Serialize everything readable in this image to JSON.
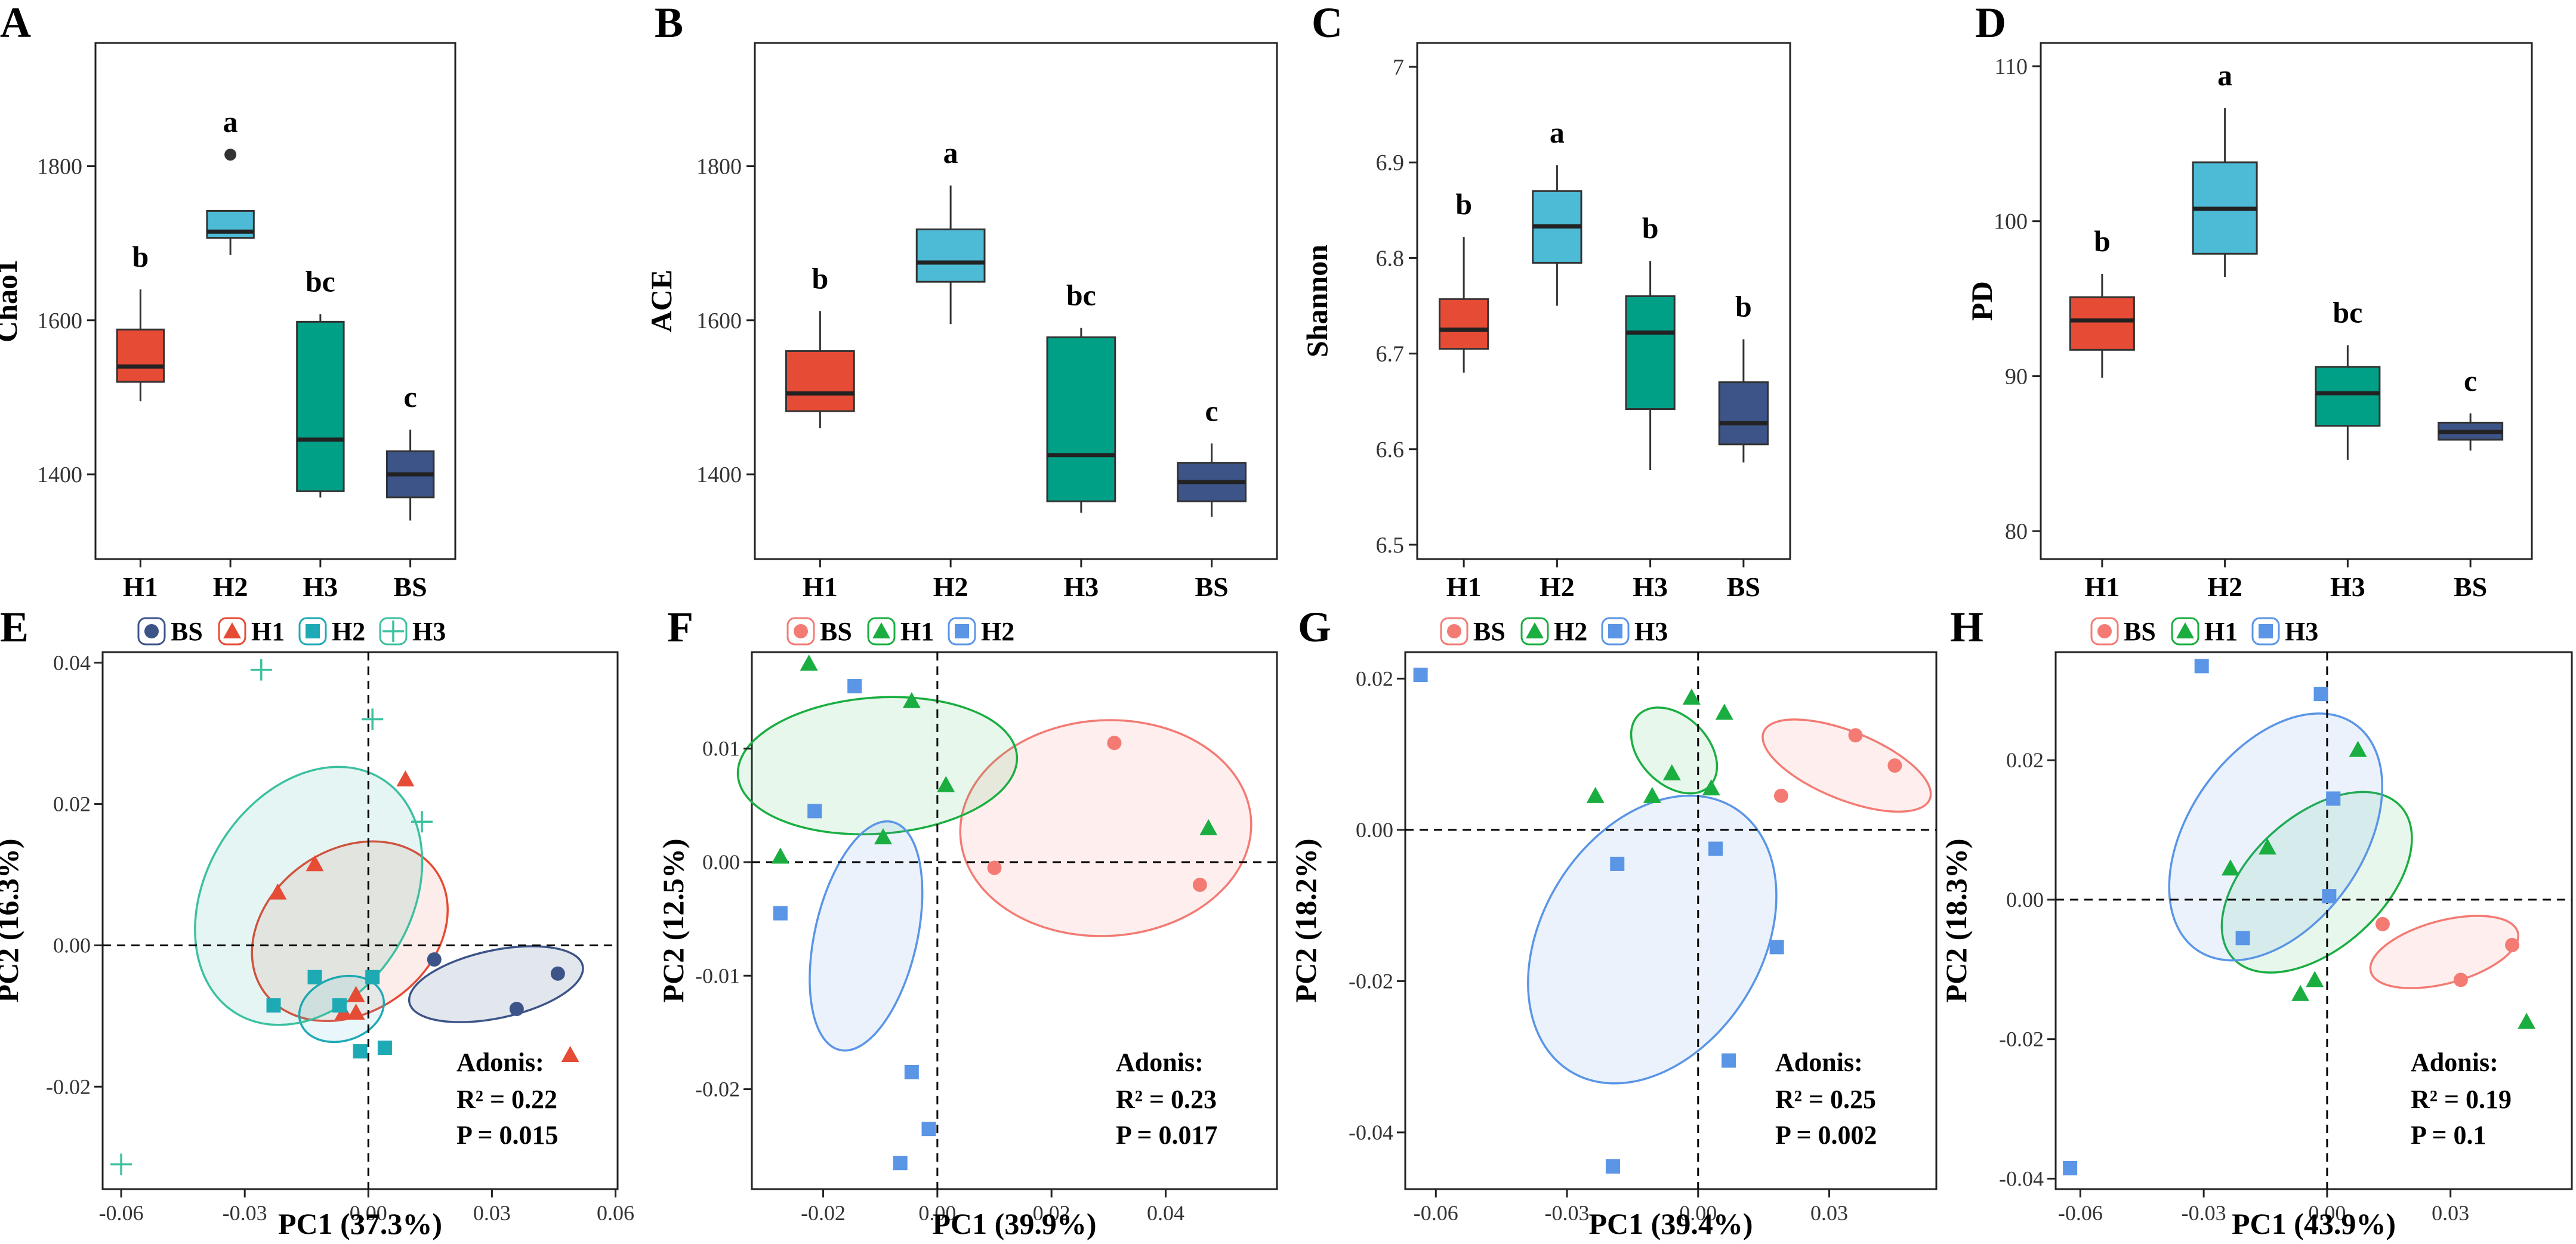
{
  "chart_data": [
    {
      "panel": "A",
      "type": "boxplot",
      "ylabel": "Chao1",
      "ylim": [
        1290,
        1960
      ],
      "yticks": [
        1400,
        1600,
        1800
      ],
      "categories": [
        "H1",
        "H2",
        "H3",
        "BS"
      ],
      "boxes": [
        {
          "group": "H1",
          "min": 1495,
          "q1": 1520,
          "median": 1540,
          "q3": 1588,
          "max": 1640,
          "color": "#E64B35",
          "letter": "b",
          "outliers": []
        },
        {
          "group": "H2",
          "min": 1685,
          "q1": 1707,
          "median": 1715,
          "q3": 1742,
          "max": 1742,
          "color": "#4DBBD5",
          "letter": "a",
          "outliers": [
            1815
          ]
        },
        {
          "group": "H3",
          "min": 1370,
          "q1": 1378,
          "median": 1445,
          "q3": 1598,
          "max": 1608,
          "color": "#00A087",
          "letter": "bc",
          "outliers": []
        },
        {
          "group": "BS",
          "min": 1340,
          "q1": 1370,
          "median": 1400,
          "q3": 1430,
          "max": 1458,
          "color": "#3C5488",
          "letter": "c",
          "outliers": []
        }
      ]
    },
    {
      "panel": "B",
      "type": "boxplot",
      "ylabel": "ACE",
      "ylim": [
        1290,
        1960
      ],
      "yticks": [
        1400,
        1600,
        1800
      ],
      "categories": [
        "H1",
        "H2",
        "H3",
        "BS"
      ],
      "boxes": [
        {
          "group": "H1",
          "min": 1460,
          "q1": 1482,
          "median": 1505,
          "q3": 1560,
          "max": 1612,
          "color": "#E64B35",
          "letter": "b",
          "outliers": []
        },
        {
          "group": "H2",
          "min": 1595,
          "q1": 1650,
          "median": 1675,
          "q3": 1718,
          "max": 1775,
          "color": "#4DBBD5",
          "letter": "a",
          "outliers": []
        },
        {
          "group": "H3",
          "min": 1350,
          "q1": 1365,
          "median": 1425,
          "q3": 1578,
          "max": 1590,
          "color": "#00A087",
          "letter": "bc",
          "outliers": []
        },
        {
          "group": "BS",
          "min": 1345,
          "q1": 1365,
          "median": 1390,
          "q3": 1415,
          "max": 1440,
          "color": "#3C5488",
          "letter": "c",
          "outliers": []
        }
      ]
    },
    {
      "panel": "C",
      "type": "boxplot",
      "ylabel": "Shannon",
      "ylim": [
        6.485,
        7.025
      ],
      "yticks": [
        6.5,
        6.6,
        6.7,
        6.8,
        6.9,
        7.0
      ],
      "categories": [
        "H1",
        "H2",
        "H3",
        "BS"
      ],
      "boxes": [
        {
          "group": "H1",
          "min": 6.68,
          "q1": 6.705,
          "median": 6.725,
          "q3": 6.757,
          "max": 6.822,
          "color": "#E64B35",
          "letter": "b",
          "outliers": []
        },
        {
          "group": "H2",
          "min": 6.75,
          "q1": 6.795,
          "median": 6.833,
          "q3": 6.87,
          "max": 6.897,
          "color": "#4DBBD5",
          "letter": "a",
          "outliers": []
        },
        {
          "group": "H3",
          "min": 6.578,
          "q1": 6.642,
          "median": 6.722,
          "q3": 6.76,
          "max": 6.797,
          "color": "#00A087",
          "letter": "b",
          "outliers": []
        },
        {
          "group": "BS",
          "min": 6.586,
          "q1": 6.605,
          "median": 6.627,
          "q3": 6.67,
          "max": 6.715,
          "color": "#3C5488",
          "letter": "b",
          "outliers": []
        }
      ]
    },
    {
      "panel": "D",
      "type": "boxplot",
      "ylabel": "PD",
      "ylim": [
        78.2,
        111.5
      ],
      "yticks": [
        80,
        90,
        100,
        110
      ],
      "categories": [
        "H1",
        "H2",
        "H3",
        "BS"
      ],
      "boxes": [
        {
          "group": "H1",
          "min": 89.9,
          "q1": 91.7,
          "median": 93.6,
          "q3": 95.1,
          "max": 96.6,
          "color": "#E64B35",
          "letter": "b",
          "outliers": []
        },
        {
          "group": "H2",
          "min": 96.4,
          "q1": 97.9,
          "median": 100.8,
          "q3": 103.8,
          "max": 107.3,
          "color": "#4DBBD5",
          "letter": "a",
          "outliers": []
        },
        {
          "group": "H3",
          "min": 84.6,
          "q1": 86.8,
          "median": 88.9,
          "q3": 90.6,
          "max": 92.0,
          "color": "#00A087",
          "letter": "bc",
          "outliers": []
        },
        {
          "group": "BS",
          "min": 85.2,
          "q1": 85.9,
          "median": 86.4,
          "q3": 87.0,
          "max": 87.6,
          "color": "#3C5488",
          "letter": "c",
          "outliers": []
        }
      ]
    },
    {
      "panel": "E",
      "type": "scatter",
      "xlabel": "PC1 (37.3%)",
      "ylabel": "PC2 (16.3%)",
      "xlim": [
        -0.0645,
        0.0605
      ],
      "ylim": [
        -0.0345,
        0.0415
      ],
      "xticks": [
        -0.06,
        -0.03,
        0.0,
        0.03,
        0.06
      ],
      "xtick_labels": [
        "-0.06",
        "-0.03",
        "0.00",
        "0.03",
        "0.06"
      ],
      "yticks": [
        -0.02,
        0.0,
        0.02,
        0.04
      ],
      "ytick_labels": [
        "-0.02",
        "0.00",
        "0.02",
        "0.04"
      ],
      "adonis": {
        "title": "Adonis:",
        "r2": "R² = 0.22",
        "p": "P  = 0.015"
      },
      "series": [
        {
          "name": "BS",
          "shape": "circle",
          "color": "#3C5488",
          "fill": "rgba(60,84,136,0.15)",
          "points": [
            [
              0.016,
              -0.002
            ],
            [
              0.036,
              -0.009
            ],
            [
              0.046,
              -0.004
            ]
          ],
          "ellipse": {
            "cx": 0.031,
            "cy": -0.0055,
            "rx": 0.0215,
            "ry": 0.0048,
            "angle": -12
          }
        },
        {
          "name": "H1",
          "shape": "triangle",
          "color": "#E64B35",
          "fill": "rgba(230,75,53,0.10)",
          "points": [
            [
              0.009,
              0.0235
            ],
            [
              -0.013,
              0.0115
            ],
            [
              -0.022,
              0.0075
            ],
            [
              -0.003,
              -0.007
            ],
            [
              -0.006,
              -0.0095
            ],
            [
              -0.003,
              -0.0095
            ],
            [
              0.049,
              -0.0155
            ]
          ],
          "ellipse": {
            "cx": -0.0045,
            "cy": 0.002,
            "rx": 0.0255,
            "ry": 0.0115,
            "angle": -35
          }
        },
        {
          "name": "H2",
          "shape": "square",
          "color": "#1EAAB5",
          "fill": "rgba(77,187,213,0.12)",
          "points": [
            [
              -0.023,
              -0.0085
            ],
            [
              -0.013,
              -0.0045
            ],
            [
              -0.007,
              -0.0085
            ],
            [
              0.001,
              -0.0045
            ],
            [
              -0.002,
              -0.015
            ],
            [
              0.004,
              -0.0145
            ]
          ],
          "ellipse": {
            "cx": -0.0065,
            "cy": -0.009,
            "rx": 0.0105,
            "ry": 0.0045,
            "angle": -18
          }
        },
        {
          "name": "H3",
          "shape": "plus",
          "color": "#3CC0A0",
          "fill": "rgba(0,160,135,0.10)",
          "points": [
            [
              -0.026,
              0.039
            ],
            [
              0.001,
              0.032
            ],
            [
              0.013,
              0.0175
            ],
            [
              -0.06,
              -0.031
            ]
          ],
          "ellipse": {
            "cx": -0.0145,
            "cy": 0.007,
            "rx": 0.0335,
            "ry": 0.0145,
            "angle": -58
          }
        }
      ]
    },
    {
      "panel": "F",
      "type": "scatter",
      "xlabel": "PC1 (39.9%)",
      "ylabel": "PC2 (12.5%)",
      "xlim": [
        -0.0325,
        0.0595
      ],
      "ylim": [
        -0.0288,
        0.0185
      ],
      "xticks": [
        -0.02,
        0.0,
        0.02,
        0.04
      ],
      "xtick_labels": [
        "-0.02",
        "0.00",
        "0.02",
        "0.04"
      ],
      "yticks": [
        -0.02,
        -0.01,
        0.0,
        0.01
      ],
      "ytick_labels": [
        "-0.02",
        "-0.01",
        "0.00",
        "0.01"
      ],
      "adonis": {
        "title": "Adonis:",
        "r2": "R² = 0.23",
        "p": "P  = 0.017"
      },
      "series": [
        {
          "name": "BS",
          "shape": "circle",
          "color": "#F37B74",
          "fill": "rgba(243,123,116,0.12)",
          "points": [
            [
              0.031,
              0.0105
            ],
            [
              0.01,
              -0.0005
            ],
            [
              0.046,
              -0.002
            ]
          ],
          "ellipse": {
            "cx": 0.0295,
            "cy": 0.003,
            "rx": 0.0255,
            "ry": 0.0095,
            "angle": -3
          }
        },
        {
          "name": "H1",
          "shape": "triangle",
          "color": "#1AAE41",
          "fill": "rgba(26,174,65,0.10)",
          "points": [
            [
              -0.0225,
              0.0175
            ],
            [
              -0.0045,
              0.0142
            ],
            [
              0.0015,
              0.0068
            ],
            [
              -0.0095,
              0.0022
            ],
            [
              -0.0275,
              0.0005
            ],
            [
              0.0475,
              0.003
            ]
          ],
          "ellipse": {
            "cx": -0.0105,
            "cy": 0.0085,
            "rx": 0.0245,
            "ry": 0.006,
            "angle": -4
          }
        },
        {
          "name": "H2",
          "shape": "square",
          "color": "#5A95E6",
          "fill": "rgba(90,149,230,0.12)",
          "points": [
            [
              -0.0145,
              0.0155
            ],
            [
              -0.0215,
              0.0045
            ],
            [
              -0.0275,
              -0.0045
            ],
            [
              -0.0045,
              -0.0185
            ],
            [
              -0.0015,
              -0.0235
            ],
            [
              -0.0065,
              -0.0265
            ]
          ],
          "ellipse": {
            "cx": -0.0125,
            "cy": -0.0065,
            "rx": 0.0205,
            "ry": 0.0045,
            "angle": -77
          }
        }
      ]
    },
    {
      "panel": "G",
      "type": "scatter",
      "xlabel": "PC1 (39.4%)",
      "ylabel": "PC2 (18.2%)",
      "xlim": [
        -0.067,
        0.0545
      ],
      "ylim": [
        -0.0475,
        0.0235
      ],
      "xticks": [
        -0.06,
        -0.03,
        0.0,
        0.03
      ],
      "xtick_labels": [
        "-0.06",
        "-0.03",
        "0.00",
        "0.03"
      ],
      "yticks": [
        -0.04,
        -0.02,
        0.0,
        0.02
      ],
      "ytick_labels": [
        "-0.04",
        "-0.02",
        "0.00",
        "0.02"
      ],
      "adonis": {
        "title": "Adonis:",
        "r2": "R² = 0.25",
        "p": "P  = 0.002"
      },
      "series": [
        {
          "name": "BS",
          "shape": "circle",
          "color": "#F37B74",
          "fill": "rgba(243,123,116,0.12)",
          "points": [
            [
              0.036,
              0.0125
            ],
            [
              0.045,
              0.0085
            ],
            [
              0.019,
              0.0045
            ]
          ],
          "ellipse": {
            "cx": 0.034,
            "cy": 0.0085,
            "rx": 0.0205,
            "ry": 0.0045,
            "angle": 22
          }
        },
        {
          "name": "H2",
          "shape": "triangle",
          "color": "#1AAE41",
          "fill": "rgba(26,174,65,0.10)",
          "points": [
            [
              -0.0015,
              0.0175
            ],
            [
              0.006,
              0.0155
            ],
            [
              -0.006,
              0.0075
            ],
            [
              0.003,
              0.0055
            ],
            [
              -0.0105,
              0.0045
            ],
            [
              -0.0235,
              0.0045
            ]
          ],
          "ellipse": {
            "cx": -0.0055,
            "cy": 0.0105,
            "rx": 0.0115,
            "ry": 0.0045,
            "angle": 45
          }
        },
        {
          "name": "H3",
          "shape": "square",
          "color": "#5A95E6",
          "fill": "rgba(90,149,230,0.12)",
          "points": [
            [
              -0.0635,
              0.0205
            ],
            [
              -0.0185,
              -0.0045
            ],
            [
              0.004,
              -0.0025
            ],
            [
              0.018,
              -0.0155
            ],
            [
              0.007,
              -0.0305
            ],
            [
              -0.0195,
              -0.0445
            ]
          ],
          "ellipse": {
            "cx": -0.0105,
            "cy": -0.0145,
            "rx": 0.0355,
            "ry": 0.0145,
            "angle": -58
          }
        }
      ]
    },
    {
      "panel": "H",
      "type": "scatter",
      "xlabel": "PC1 (43.9%)",
      "ylabel": "PC2 (18.3%)",
      "xlim": [
        -0.066,
        0.0595
      ],
      "ylim": [
        -0.0415,
        0.0355
      ],
      "xticks": [
        -0.06,
        -0.03,
        0.0,
        0.03
      ],
      "xtick_labels": [
        "-0.06",
        "-0.03",
        "0.00",
        "0.03"
      ],
      "yticks": [
        -0.04,
        -0.02,
        0.0,
        0.02
      ],
      "ytick_labels": [
        "-0.04",
        "-0.02",
        "0.00",
        "0.02"
      ],
      "adonis": {
        "title": "Adonis:",
        "r2": "R² = 0.19",
        "p": "P  = 0.1"
      },
      "series": [
        {
          "name": "BS",
          "shape": "circle",
          "color": "#F37B74",
          "fill": "rgba(243,123,116,0.12)",
          "points": [
            [
              0.0135,
              -0.0035
            ],
            [
              0.0325,
              -0.0115
            ],
            [
              0.045,
              -0.0065
            ]
          ],
          "ellipse": {
            "cx": 0.0285,
            "cy": -0.0075,
            "rx": 0.0185,
            "ry": 0.0045,
            "angle": -15
          }
        },
        {
          "name": "H1",
          "shape": "triangle",
          "color": "#1AAE41",
          "fill": "rgba(26,174,65,0.10)",
          "points": [
            [
              0.0075,
              0.0215
            ],
            [
              -0.0145,
              0.0075
            ],
            [
              -0.0235,
              0.0045
            ],
            [
              -0.003,
              -0.0115
            ],
            [
              -0.0065,
              -0.0135
            ],
            [
              0.0485,
              -0.0175
            ]
          ],
          "ellipse": {
            "cx": -0.0025,
            "cy": 0.0025,
            "rx": 0.0275,
            "ry": 0.0095,
            "angle": -42
          }
        },
        {
          "name": "H3",
          "shape": "square",
          "color": "#5A95E6",
          "fill": "rgba(90,149,230,0.12)",
          "points": [
            [
              -0.0305,
              0.0335
            ],
            [
              -0.0015,
              0.0295
            ],
            [
              0.0015,
              0.0145
            ],
            [
              0.0005,
              0.0005
            ],
            [
              -0.0205,
              -0.0055
            ],
            [
              -0.0625,
              -0.0385
            ]
          ],
          "ellipse": {
            "cx": -0.0125,
            "cy": 0.009,
            "rx": 0.0335,
            "ry": 0.0125,
            "angle": -55
          }
        }
      ]
    }
  ]
}
